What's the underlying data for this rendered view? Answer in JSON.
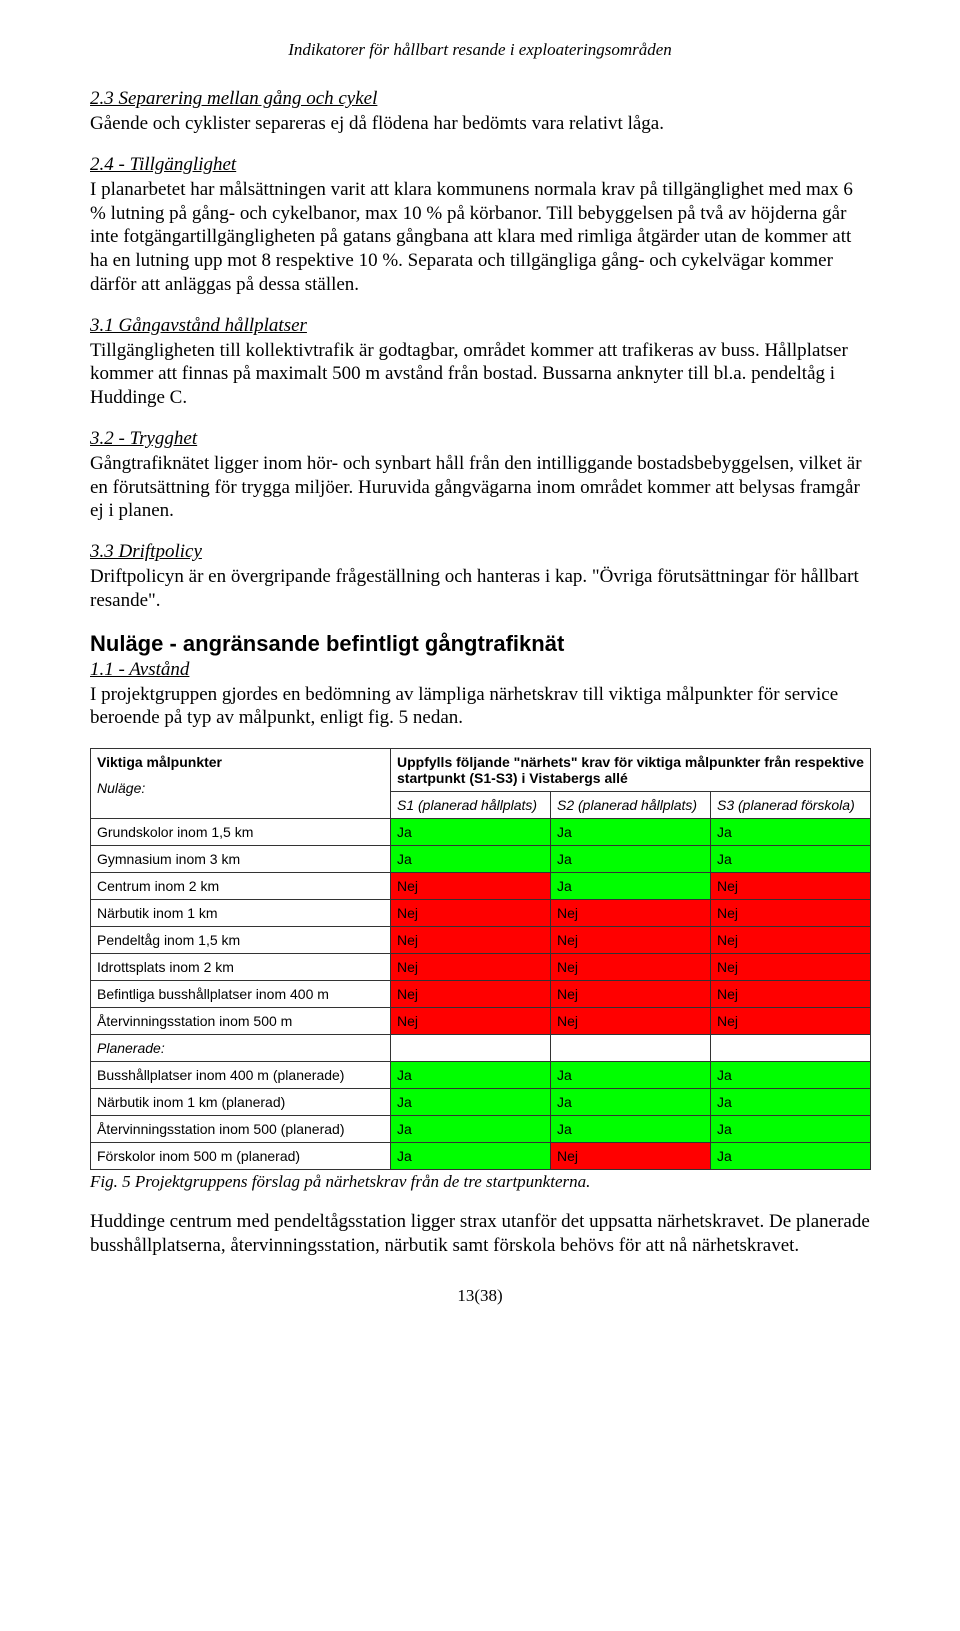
{
  "header": {
    "running": "Indikatorer för hållbart resande i exploateringsområden"
  },
  "sections": {
    "s23": {
      "heading": "2.3 Separering mellan gång och cykel",
      "text": "Gående och cyklister separeras ej då flödena har bedömts vara relativt låga."
    },
    "s24": {
      "heading": "2.4 - Tillgänglighet",
      "text": "I planarbetet har målsättningen varit att klara kommunens normala krav på tillgänglighet med max 6 % lutning på gång- och cykelbanor, max 10 % på körbanor. Till bebyggelsen på två av höjderna går inte fotgängartillgängligheten på gatans gångbana att klara med rimliga åtgärder utan de kommer att ha en lutning upp mot 8 respektive 10 %. Separata och tillgängliga gång- och cykelvägar kommer därför att anläggas på dessa ställen."
    },
    "s31": {
      "heading": "3.1 Gångavstånd hållplatser",
      "text": "Tillgängligheten till kollektivtrafik är godtagbar, området kommer att trafikeras av buss. Hållplatser kommer att finnas på maximalt 500 m avstånd från bostad. Bussarna anknyter till bl.a. pendeltåg i Huddinge C."
    },
    "s32": {
      "heading": "3.2 - Trygghet",
      "text": "Gångtrafiknätet ligger inom hör- och synbart håll från den intilliggande bostadsbebyggelsen, vilket är en förutsättning för trygga miljöer. Huruvida gångvägarna inom området kommer att belysas framgår ej i planen."
    },
    "s33": {
      "heading": "3.3 Driftpolicy",
      "text": "Driftpolicyn är en övergripande frågeställning och hanteras i kap. \"Övriga förutsättningar för hållbart resande\"."
    },
    "nulage": {
      "heading": "Nuläge - angränsande befintligt gångtrafiknät"
    },
    "s11": {
      "heading": "1.1 - Avstånd",
      "text": "I projektgruppen gjordes en bedömning av lämpliga närhetskrav till viktiga målpunkter för service beroende på typ av målpunkt, enligt fig. 5 nedan."
    }
  },
  "table": {
    "colors": {
      "ja": "#00ff00",
      "nej": "#ff0000"
    },
    "header_main": "Viktiga målpunkter",
    "header_block": "Uppfylls följande \"närhets\" krav för viktiga målpunkter från respektive startpunkt (S1-S3) i Vistabergs allé",
    "sub_nulage": "Nuläge:",
    "sub_s1": "S1 (planerad hållplats)",
    "sub_s2": "S2 (planerad hållplats)",
    "sub_s3": "S3 (planerad förskola)",
    "planerade_label": "Planerade:",
    "rows_nulage": [
      {
        "label": "Grundskolor inom 1,5 km",
        "v": [
          "Ja",
          "Ja",
          "Ja"
        ]
      },
      {
        "label": "Gymnasium inom 3 km",
        "v": [
          "Ja",
          "Ja",
          "Ja"
        ]
      },
      {
        "label": "Centrum inom 2 km",
        "v": [
          "Nej",
          "Ja",
          "Nej"
        ]
      },
      {
        "label": "Närbutik inom 1 km",
        "v": [
          "Nej",
          "Nej",
          "Nej"
        ]
      },
      {
        "label": "Pendeltåg inom 1,5 km",
        "v": [
          "Nej",
          "Nej",
          "Nej"
        ]
      },
      {
        "label": "Idrottsplats inom 2 km",
        "v": [
          "Nej",
          "Nej",
          "Nej"
        ]
      },
      {
        "label": "Befintliga busshållplatser inom 400 m",
        "v": [
          "Nej",
          "Nej",
          "Nej"
        ]
      },
      {
        "label": "Återvinningsstation inom 500 m",
        "v": [
          "Nej",
          "Nej",
          "Nej"
        ]
      }
    ],
    "rows_planerade": [
      {
        "label": "Busshållplatser inom 400 m (planerade)",
        "v": [
          "Ja",
          "Ja",
          "Ja"
        ]
      },
      {
        "label": "Närbutik inom 1 km (planerad)",
        "v": [
          "Ja",
          "Ja",
          "Ja"
        ]
      },
      {
        "label": "Återvinningsstation inom 500 (planerad)",
        "v": [
          "Ja",
          "Ja",
          "Ja"
        ]
      },
      {
        "label": "Förskolor inom 500 m (planerad)",
        "v": [
          "Ja",
          "Nej",
          "Ja"
        ]
      }
    ]
  },
  "caption": "Fig. 5 Projektgruppens förslag på närhetskrav från de tre startpunkterna.",
  "closing": "Huddinge centrum med pendeltågsstation ligger strax utanför det uppsatta närhetskravet. De planerade busshållplatserna, återvinningsstation, närbutik samt förskola behövs för att nå närhetskravet.",
  "page_number": "13(38)"
}
